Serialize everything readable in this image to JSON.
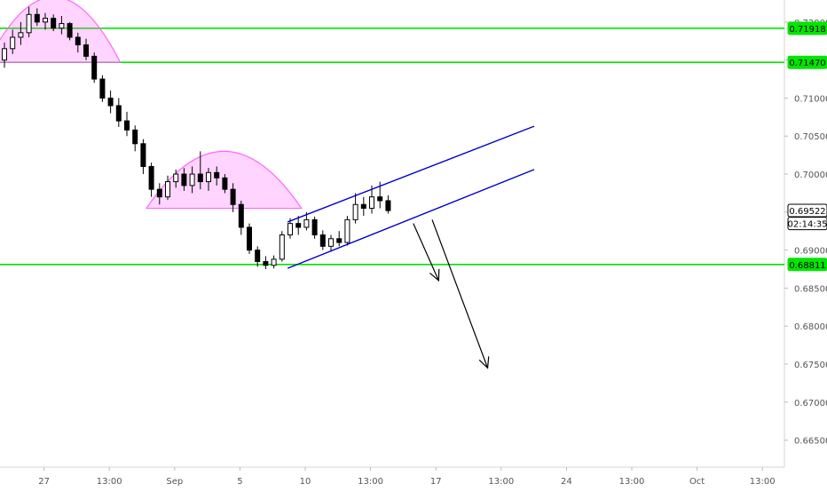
{
  "chart_data": {
    "type": "candlestick",
    "price_axis": {
      "min": 0.6625,
      "max": 0.7215,
      "ticks": [
        "0.72000",
        "0.71500",
        "0.71000",
        "0.70500",
        "0.70000",
        "0.69500",
        "0.69000",
        "0.68500",
        "0.68000",
        "0.67500",
        "0.67000",
        "0.66500"
      ]
    },
    "time_axis": {
      "labels": [
        {
          "text": "27",
          "bar": 3
        },
        {
          "text": "13:00",
          "bar": 11
        },
        {
          "text": "Sep",
          "bar": 19
        },
        {
          "text": "5",
          "bar": 27
        },
        {
          "text": "10",
          "bar": 35
        },
        {
          "text": "13:00",
          "bar": 43
        },
        {
          "text": "17",
          "bar": 51
        },
        {
          "text": "13:00",
          "bar": 59
        },
        {
          "text": "24",
          "bar": 67
        },
        {
          "text": "13:00",
          "bar": 75
        },
        {
          "text": "Oct",
          "bar": 83
        },
        {
          "text": "13:00",
          "bar": 91
        }
      ]
    },
    "price_tags": [
      {
        "text": "0.71918",
        "value": 0.71918,
        "color": "#00e600"
      },
      {
        "text": "0.71470",
        "value": 0.7147,
        "color": "#00e600"
      },
      {
        "text": "0.69522",
        "value": 0.69522,
        "color": "#000000"
      },
      {
        "text": "02:14:35",
        "value": 0.6935,
        "color": "#000000"
      },
      {
        "text": "0.68811",
        "value": 0.68811,
        "color": "#00e600"
      }
    ],
    "horizontal_lines": [
      0.71918,
      0.7147,
      0.68811
    ],
    "line_color": "#00e600",
    "channel_color": "#0000cc",
    "arc_color": "#ff66ff",
    "candles": [
      [
        0.715,
        0.7173,
        0.714,
        0.7165
      ],
      [
        0.7165,
        0.719,
        0.7158,
        0.718
      ],
      [
        0.718,
        0.72,
        0.717,
        0.7186
      ],
      [
        0.7186,
        0.722,
        0.718,
        0.721
      ],
      [
        0.721,
        0.7218,
        0.7195,
        0.72
      ],
      [
        0.72,
        0.7212,
        0.719,
        0.7205
      ],
      [
        0.7205,
        0.721,
        0.7188,
        0.7192
      ],
      [
        0.7192,
        0.7208,
        0.7184,
        0.7198
      ],
      [
        0.7198,
        0.72,
        0.7176,
        0.718
      ],
      [
        0.718,
        0.7186,
        0.716,
        0.717
      ],
      [
        0.717,
        0.7178,
        0.715,
        0.7155
      ],
      [
        0.7155,
        0.716,
        0.712,
        0.7125
      ],
      [
        0.7125,
        0.713,
        0.7095,
        0.71
      ],
      [
        0.71,
        0.711,
        0.708,
        0.709
      ],
      [
        0.709,
        0.71,
        0.7062,
        0.707
      ],
      [
        0.707,
        0.7082,
        0.705,
        0.7058
      ],
      [
        0.7058,
        0.7064,
        0.703,
        0.704
      ],
      [
        0.704,
        0.7046,
        0.7,
        0.701
      ],
      [
        0.701,
        0.7015,
        0.697,
        0.698
      ],
      [
        0.698,
        0.6988,
        0.696,
        0.697
      ],
      [
        0.697,
        0.6998,
        0.6966,
        0.699
      ],
      [
        0.699,
        0.7006,
        0.6982,
        0.7
      ],
      [
        0.7,
        0.7008,
        0.6978,
        0.6985
      ],
      [
        0.6985,
        0.701,
        0.6975,
        0.7
      ],
      [
        0.7,
        0.703,
        0.698,
        0.699
      ],
      [
        0.699,
        0.7008,
        0.6978,
        0.7002
      ],
      [
        0.7002,
        0.701,
        0.6985,
        0.6995
      ],
      [
        0.6995,
        0.7,
        0.6975,
        0.698
      ],
      [
        0.698,
        0.6988,
        0.695,
        0.696
      ],
      [
        0.696,
        0.6965,
        0.692,
        0.693
      ],
      [
        0.693,
        0.6935,
        0.6895,
        0.69
      ],
      [
        0.69,
        0.6905,
        0.6878,
        0.6885
      ],
      [
        0.6885,
        0.6892,
        0.6875,
        0.688
      ],
      [
        0.688,
        0.6893,
        0.6876,
        0.6888
      ],
      [
        0.6888,
        0.6925,
        0.6885,
        0.692
      ],
      [
        0.692,
        0.6942,
        0.6915,
        0.6935
      ],
      [
        0.6935,
        0.6945,
        0.692,
        0.693
      ],
      [
        0.693,
        0.695,
        0.6926,
        0.694
      ],
      [
        0.694,
        0.6944,
        0.6915,
        0.692
      ],
      [
        0.692,
        0.6926,
        0.69,
        0.6905
      ],
      [
        0.6905,
        0.692,
        0.6898,
        0.6915
      ],
      [
        0.6915,
        0.6925,
        0.6905,
        0.691
      ],
      [
        0.691,
        0.6945,
        0.6906,
        0.694
      ],
      [
        0.694,
        0.6975,
        0.6935,
        0.696
      ],
      [
        0.696,
        0.697,
        0.6945,
        0.6955
      ],
      [
        0.6955,
        0.6985,
        0.6948,
        0.697
      ],
      [
        0.697,
        0.699,
        0.6955,
        0.6965
      ],
      [
        0.6965,
        0.6972,
        0.6948,
        0.6952
      ]
    ]
  }
}
